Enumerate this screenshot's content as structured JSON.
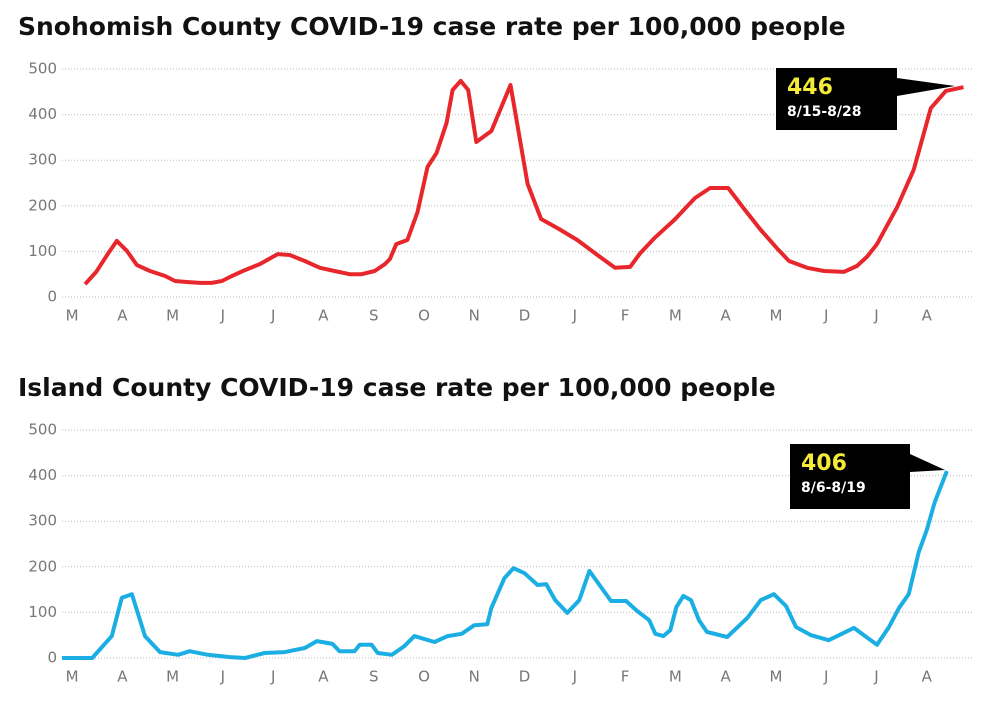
{
  "chart_data": [
    {
      "type": "line",
      "title": "Snohomish County COVID-19 case rate per 100,000 people",
      "xlim": [
        -0.2,
        17.9
      ],
      "xticks": [
        {
          "value": 0,
          "label": "M"
        },
        {
          "value": 1,
          "label": "A"
        },
        {
          "value": 2,
          "label": "M"
        },
        {
          "value": 3,
          "label": "J"
        },
        {
          "value": 4,
          "label": "J"
        },
        {
          "value": 5,
          "label": "A"
        },
        {
          "value": 6,
          "label": "S"
        },
        {
          "value": 7,
          "label": "O"
        },
        {
          "value": 8,
          "label": "N"
        },
        {
          "value": 9,
          "label": "D"
        },
        {
          "value": 10,
          "label": "J"
        },
        {
          "value": 11,
          "label": "F"
        },
        {
          "value": 12,
          "label": "M"
        },
        {
          "value": 13,
          "label": "A"
        },
        {
          "value": 14,
          "label": "M"
        },
        {
          "value": 15,
          "label": "J"
        },
        {
          "value": 16,
          "label": "J"
        },
        {
          "value": 17,
          "label": "A"
        }
      ],
      "ylim": [
        0,
        500
      ],
      "yticks": [
        0,
        100,
        200,
        300,
        400,
        500
      ],
      "grid": true,
      "series": [
        {
          "color": "#e8272c",
          "x": [
            0.26,
            0.48,
            0.72,
            0.89,
            1.09,
            1.29,
            1.55,
            1.85,
            2.05,
            2.28,
            2.54,
            2.78,
            2.98,
            3.18,
            3.44,
            3.73,
            4.09,
            4.33,
            4.63,
            4.93,
            5.22,
            5.52,
            5.76,
            6.02,
            6.22,
            6.32,
            6.45,
            6.67,
            6.87,
            7.07,
            7.25,
            7.45,
            7.57,
            7.73,
            7.88,
            8.04,
            8.34,
            8.72,
            9.06,
            9.33,
            9.69,
            10.05,
            10.45,
            10.8,
            11.1,
            11.3,
            11.58,
            11.98,
            12.39,
            12.69,
            13.05,
            13.37,
            13.7,
            14.02,
            14.26,
            14.62,
            14.96,
            15.35,
            15.61,
            15.81,
            16.01,
            16.41,
            16.74,
            17.08,
            17.38,
            17.73
          ],
          "values": [
            28,
            55,
            96,
            123,
            101,
            70,
            57,
            46,
            35,
            33,
            31,
            31,
            35,
            46,
            59,
            72,
            94,
            92,
            79,
            64,
            57,
            50,
            50,
            57,
            72,
            83,
            116,
            125,
            186,
            285,
            316,
            382,
            454,
            474,
            454,
            340,
            364,
            465,
            248,
            171,
            149,
            125,
            92,
            64,
            66,
            96,
            129,
            169,
            217,
            239,
            239,
            193,
            147,
            107,
            79,
            64,
            57,
            55,
            68,
            88,
            116,
            197,
            279,
            414,
            452,
            460
          ]
        }
      ],
      "callout": {
        "value": 446,
        "label": "8/15-8/28"
      }
    },
    {
      "type": "line",
      "title": "Island County COVID-19 case rate per 100,000 people",
      "xlim": [
        -0.2,
        17.9
      ],
      "xticks": [
        {
          "value": 0,
          "label": "M"
        },
        {
          "value": 1,
          "label": "A"
        },
        {
          "value": 2,
          "label": "M"
        },
        {
          "value": 3,
          "label": "J"
        },
        {
          "value": 4,
          "label": "J"
        },
        {
          "value": 5,
          "label": "A"
        },
        {
          "value": 6,
          "label": "S"
        },
        {
          "value": 7,
          "label": "O"
        },
        {
          "value": 8,
          "label": "N"
        },
        {
          "value": 9,
          "label": "D"
        },
        {
          "value": 10,
          "label": "J"
        },
        {
          "value": 11,
          "label": "F"
        },
        {
          "value": 12,
          "label": "M"
        },
        {
          "value": 13,
          "label": "A"
        },
        {
          "value": 14,
          "label": "M"
        },
        {
          "value": 15,
          "label": "J"
        },
        {
          "value": 16,
          "label": "J"
        },
        {
          "value": 17,
          "label": "A"
        }
      ],
      "ylim": [
        0,
        500
      ],
      "yticks": [
        0,
        100,
        200,
        300,
        400,
        500
      ],
      "grid": true,
      "series": [
        {
          "color": "#1aaee3",
          "x": [
            -0.2,
            0.4,
            0.79,
            0.99,
            1.19,
            1.45,
            1.75,
            2.11,
            2.34,
            2.7,
            3.14,
            3.44,
            3.83,
            4.23,
            4.63,
            4.87,
            5.18,
            5.32,
            5.62,
            5.72,
            5.96,
            6.08,
            6.36,
            6.61,
            6.81,
            7.21,
            7.47,
            7.75,
            8.0,
            8.26,
            8.34,
            8.6,
            8.78,
            9.0,
            9.26,
            9.43,
            9.61,
            9.85,
            10.09,
            10.29,
            10.49,
            10.72,
            11.02,
            11.24,
            11.48,
            11.6,
            11.76,
            11.9,
            12.02,
            12.16,
            12.31,
            12.47,
            12.63,
            13.03,
            13.43,
            13.7,
            13.96,
            14.2,
            14.4,
            14.7,
            15.05,
            15.55,
            16.01,
            16.25,
            16.45,
            16.64,
            16.84,
            17.0,
            17.16,
            17.4
          ],
          "values": [
            0,
            0,
            48,
            132,
            140,
            48,
            13,
            7,
            15,
            7,
            2,
            0,
            11,
            13,
            22,
            37,
            31,
            15,
            15,
            29,
            29,
            11,
            7,
            26,
            48,
            35,
            48,
            53,
            72,
            74,
            110,
            175,
            197,
            186,
            160,
            162,
            127,
            99,
            127,
            191,
            160,
            125,
            125,
            103,
            83,
            53,
            48,
            61,
            112,
            136,
            127,
            83,
            57,
            46,
            88,
            127,
            140,
            114,
            68,
            50,
            39,
            66,
            29,
            68,
            110,
            140,
            232,
            281,
            342,
            410
          ]
        }
      ],
      "callout": {
        "value": 406,
        "label": "8/6-8/19"
      }
    }
  ]
}
